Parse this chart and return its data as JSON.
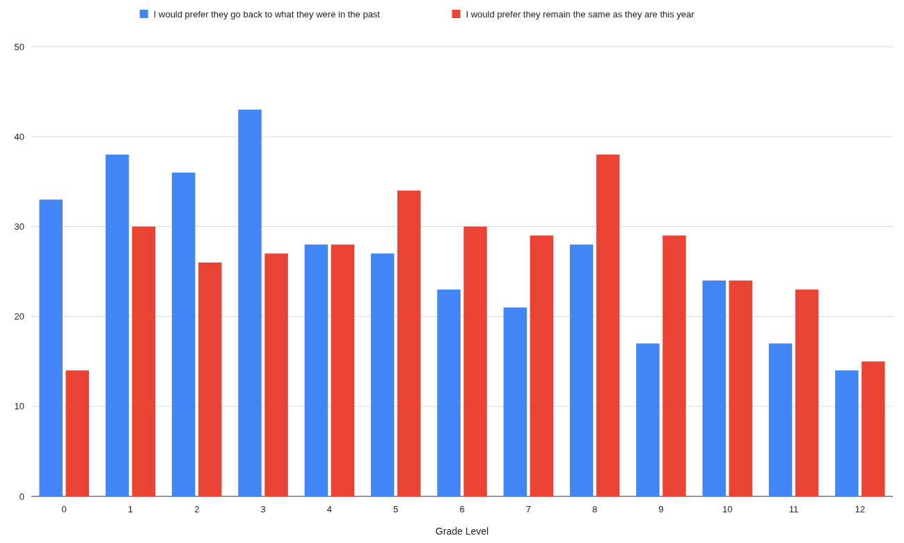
{
  "chart_data": {
    "type": "bar",
    "xlabel": "Grade Level",
    "categories": [
      "0",
      "1",
      "2",
      "3",
      "4",
      "5",
      "6",
      "7",
      "8",
      "9",
      "10",
      "11",
      "12"
    ],
    "series": [
      {
        "name": "I would prefer they go back to what they were in the past",
        "color": "#4285f4",
        "values": [
          33,
          38,
          36,
          43,
          28,
          27,
          23,
          21,
          28,
          17,
          24,
          17,
          14
        ]
      },
      {
        "name": "I would prefer they remain the same as they are this year",
        "color": "#ea4335",
        "values": [
          14,
          30,
          26,
          27,
          28,
          34,
          30,
          29,
          38,
          29,
          24,
          23,
          15
        ]
      }
    ],
    "ylim": [
      0,
      50
    ],
    "yticks": [
      0,
      10,
      20,
      30,
      40,
      50
    ],
    "grid": "y",
    "legend": "top"
  }
}
